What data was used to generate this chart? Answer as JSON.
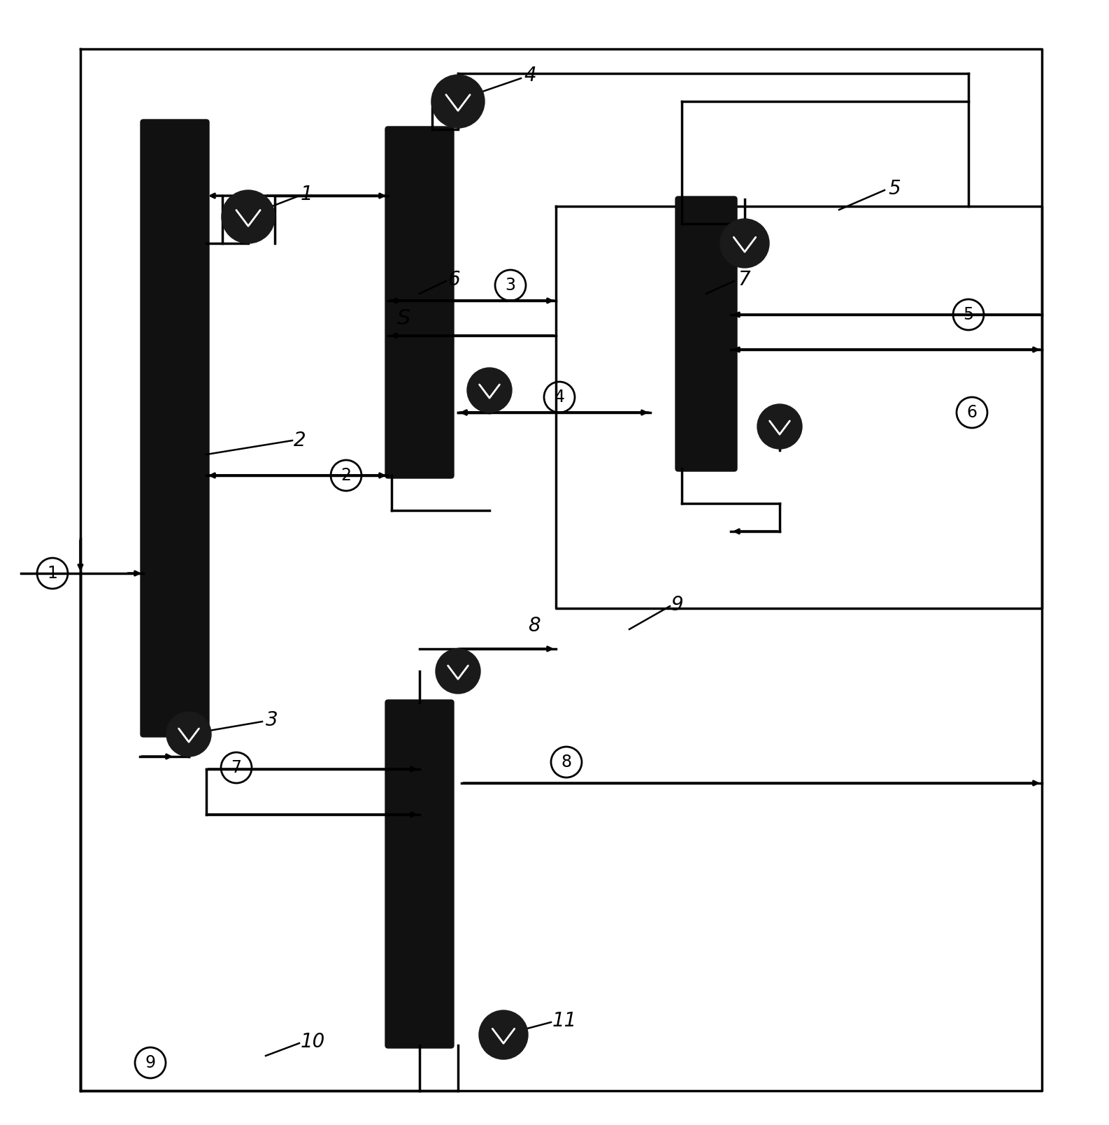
{
  "bg": "#ffffff",
  "lc": "#000000",
  "cc": "#111111",
  "fw": 15.86,
  "fh": 16.09,
  "dpi": 100
}
